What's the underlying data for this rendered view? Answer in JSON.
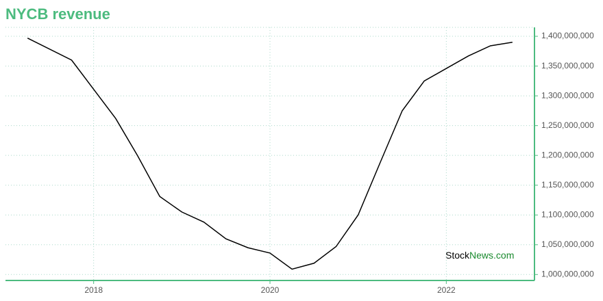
{
  "chart_data": {
    "type": "line",
    "title": "NYCB revenue",
    "x": [
      2017.25,
      2017.75,
      2018.25,
      2018.5,
      2018.75,
      2019.0,
      2019.25,
      2019.5,
      2019.75,
      2020.0,
      2020.25,
      2020.5,
      2020.75,
      2021.0,
      2021.25,
      2021.5,
      2021.75,
      2022.0,
      2022.25,
      2022.5,
      2022.75
    ],
    "values": [
      1397000000,
      1360000000,
      1262000000,
      1199000000,
      1131000000,
      1105000000,
      1088000000,
      1060000000,
      1045000000,
      1036000000,
      1009000000,
      1019000000,
      1047000000,
      1100000000,
      1188000000,
      1275000000,
      1325000000,
      1346000000,
      1367000000,
      1384000000,
      1390000000
    ],
    "color": "#000000",
    "xlim": [
      2017,
      2023
    ],
    "xticks": [
      2018,
      2020,
      2022
    ],
    "ylim": [
      990000000,
      1415000000
    ],
    "yticks": [
      {
        "value": 1000000000,
        "label": "1,000,000,000"
      },
      {
        "value": 1050000000,
        "label": "1,050,000,000"
      },
      {
        "value": 1100000000,
        "label": "1,100,000,000"
      },
      {
        "value": 1150000000,
        "label": "1,150,000,000"
      },
      {
        "value": 1200000000,
        "label": "1,200,000,000"
      },
      {
        "value": 1250000000,
        "label": "1,250,000,000"
      },
      {
        "value": 1300000000,
        "label": "1,300,000,000"
      },
      {
        "value": 1350000000,
        "label": "1,350,000,000"
      },
      {
        "value": 1400000000,
        "label": "1,400,000,000"
      }
    ],
    "grid": true,
    "watermark": [
      "Stock",
      "News.com"
    ]
  }
}
